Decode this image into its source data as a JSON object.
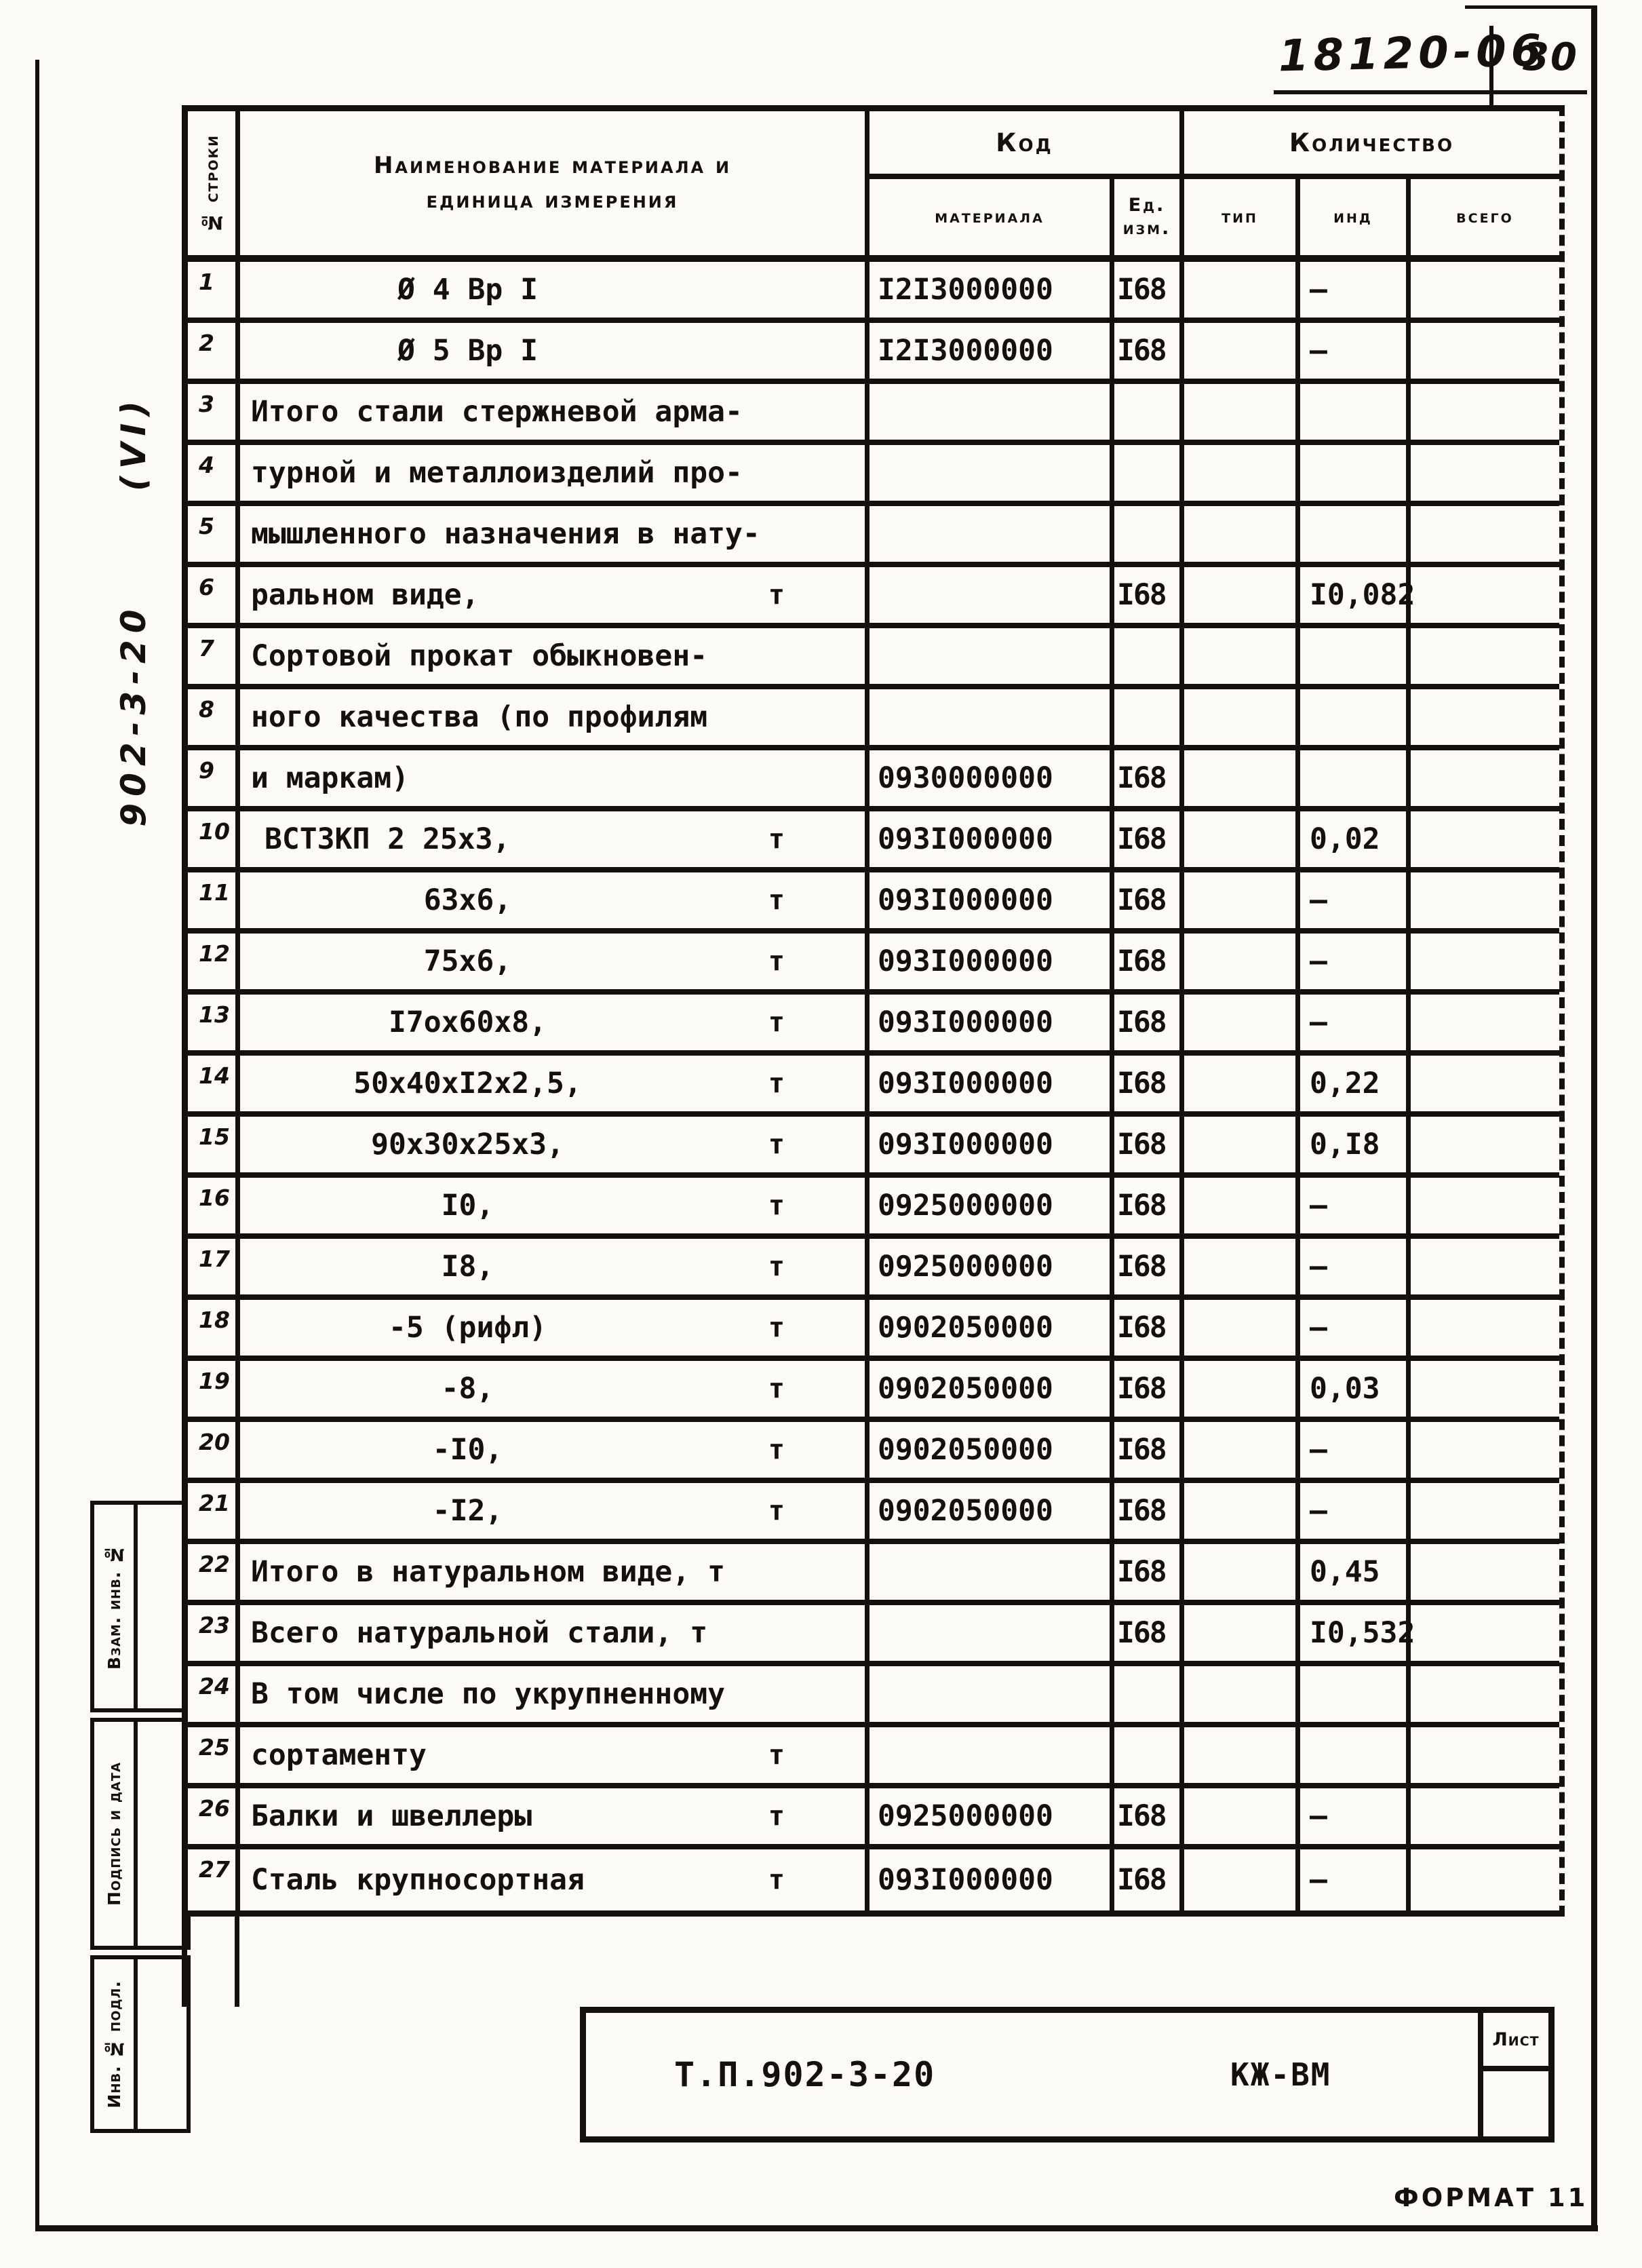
{
  "page": {
    "doc_number": "18120-06",
    "page_number": "30",
    "side_code": "902-3-20      (VI)",
    "format_label": "ФОРМАТ 11"
  },
  "stamps": [
    {
      "label": "Взам. инв. №"
    },
    {
      "label": "Подпись и дата"
    },
    {
      "label": "Инв. № подл."
    }
  ],
  "title_block": {
    "doc_code": "Т.П.902-3-20",
    "set_mark": "КЖ-ВМ",
    "sheet_label": "Лист"
  },
  "table": {
    "headers": {
      "row_no": "№ строки",
      "name": "Наименование материала и единица измерения",
      "code_group": "Код",
      "code_material": "материала",
      "code_unit": "Ед. изм.",
      "qty_group": "Количество",
      "qty_type": "тип",
      "qty_ind": "инд",
      "qty_total": "всего"
    },
    "rows": [
      {
        "no": "1",
        "align": "center",
        "name": "Ø 4 Вр I",
        "unit": "",
        "mat": "I2I3000000",
        "ed": "I68",
        "tip": "",
        "ind": "–",
        "total": ""
      },
      {
        "no": "2",
        "align": "center",
        "name": "Ø 5 Вр I",
        "unit": "",
        "mat": "I2I3000000",
        "ed": "I68",
        "tip": "",
        "ind": "–",
        "total": ""
      },
      {
        "no": "3",
        "align": "left",
        "name": "Итого стали стержневой арма-",
        "unit": "",
        "mat": "",
        "ed": "",
        "tip": "",
        "ind": "",
        "total": ""
      },
      {
        "no": "4",
        "align": "left",
        "name": "турной и металлоизделий про-",
        "unit": "",
        "mat": "",
        "ed": "",
        "tip": "",
        "ind": "",
        "total": ""
      },
      {
        "no": "5",
        "align": "left",
        "name": "мышленного назначения в нату-",
        "unit": "",
        "mat": "",
        "ed": "",
        "tip": "",
        "ind": "",
        "total": ""
      },
      {
        "no": "6",
        "align": "left",
        "name": "ральном виде,",
        "unit": "т",
        "mat": "",
        "ed": "I68",
        "tip": "",
        "ind": "I0,082",
        "total": ""
      },
      {
        "no": "7",
        "align": "left",
        "name": "Сортовой прокат обыкновен-",
        "unit": "",
        "mat": "",
        "ed": "",
        "tip": "",
        "ind": "",
        "total": ""
      },
      {
        "no": "8",
        "align": "left",
        "name": "ного качества (по профилям",
        "unit": "",
        "mat": "",
        "ed": "",
        "tip": "",
        "ind": "",
        "total": ""
      },
      {
        "no": "9",
        "align": "left",
        "name": "и маркам)",
        "unit": "",
        "mat": "0930000000",
        "ed": "I68",
        "tip": "",
        "ind": "",
        "total": ""
      },
      {
        "no": "10",
        "align": "indent",
        "name": "ВСТ3КП 2  25х3,",
        "unit": "т",
        "mat": "093I000000",
        "ed": "I68",
        "tip": "",
        "ind": "0,02",
        "total": ""
      },
      {
        "no": "11",
        "align": "center",
        "name": "63х6,",
        "unit": "т",
        "mat": "093I000000",
        "ed": "I68",
        "tip": "",
        "ind": "–",
        "total": ""
      },
      {
        "no": "12",
        "align": "center",
        "name": "75х6,",
        "unit": "т",
        "mat": "093I000000",
        "ed": "I68",
        "tip": "",
        "ind": "–",
        "total": ""
      },
      {
        "no": "13",
        "align": "center",
        "name": "I7ох60х8,",
        "unit": "т",
        "mat": "093I000000",
        "ed": "I68",
        "tip": "",
        "ind": "–",
        "total": ""
      },
      {
        "no": "14",
        "align": "center",
        "name": "50х40хI2х2,5,",
        "unit": "т",
        "mat": "093I000000",
        "ed": "I68",
        "tip": "",
        "ind": "0,22",
        "total": ""
      },
      {
        "no": "15",
        "align": "center",
        "name": "90х30х25х3,",
        "unit": "т",
        "mat": "093I000000",
        "ed": "I68",
        "tip": "",
        "ind": "0,I8",
        "total": ""
      },
      {
        "no": "16",
        "align": "center",
        "name": "I0,",
        "unit": "т",
        "mat": "0925000000",
        "ed": "I68",
        "tip": "",
        "ind": "–",
        "total": ""
      },
      {
        "no": "17",
        "align": "center",
        "name": "I8,",
        "unit": "т",
        "mat": "0925000000",
        "ed": "I68",
        "tip": "",
        "ind": "–",
        "total": ""
      },
      {
        "no": "18",
        "align": "center",
        "name": "-5 (рифл)",
        "unit": "т",
        "mat": "0902050000",
        "ed": "I68",
        "tip": "",
        "ind": "–",
        "total": ""
      },
      {
        "no": "19",
        "align": "center",
        "name": "-8,",
        "unit": "т",
        "mat": "0902050000",
        "ed": "I68",
        "tip": "",
        "ind": "0,03",
        "total": ""
      },
      {
        "no": "20",
        "align": "center",
        "name": "-I0,",
        "unit": "т",
        "mat": "0902050000",
        "ed": "I68",
        "tip": "",
        "ind": "–",
        "total": ""
      },
      {
        "no": "21",
        "align": "center",
        "name": "-I2,",
        "unit": "т",
        "mat": "0902050000",
        "ed": "I68",
        "tip": "",
        "ind": "–",
        "total": ""
      },
      {
        "no": "22",
        "align": "left",
        "name": "Итого в натуральном виде, т",
        "unit": "",
        "mat": "",
        "ed": "I68",
        "tip": "",
        "ind": "0,45",
        "total": ""
      },
      {
        "no": "23",
        "align": "left",
        "name": "Всего натуральной стали,  т",
        "unit": "",
        "mat": "",
        "ed": "I68",
        "tip": "",
        "ind": "I0,532",
        "total": ""
      },
      {
        "no": "24",
        "align": "left",
        "name": "В том числе по укрупненному",
        "unit": "",
        "mat": "",
        "ed": "",
        "tip": "",
        "ind": "",
        "total": ""
      },
      {
        "no": "25",
        "align": "left",
        "name": "сортаменту",
        "unit": "т",
        "mat": "",
        "ed": "",
        "tip": "",
        "ind": "",
        "total": ""
      },
      {
        "no": "26",
        "align": "left",
        "name": "Балки и швеллеры",
        "unit": "т",
        "mat": "0925000000",
        "ed": "I68",
        "tip": "",
        "ind": "–",
        "total": ""
      },
      {
        "no": "27",
        "align": "left",
        "name": "Сталь крупносортная",
        "unit": "т",
        "mat": "093I000000",
        "ed": "I68",
        "tip": "",
        "ind": "–",
        "total": ""
      }
    ]
  }
}
